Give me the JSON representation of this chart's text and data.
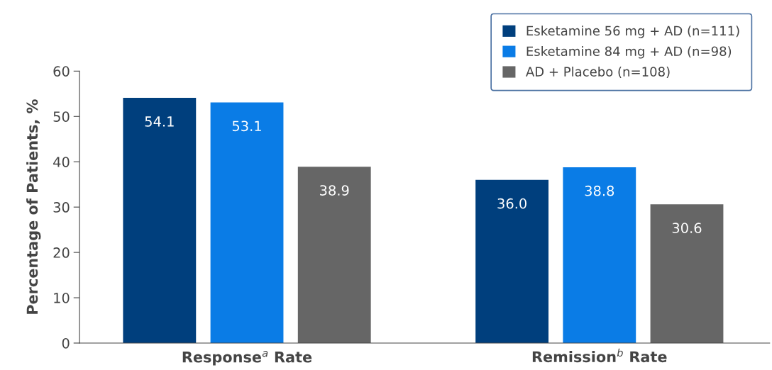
{
  "chart_data": {
    "type": "bar",
    "ylabel": "Percentage of Patients, %",
    "categories": [
      "Response$^{a}$ Rate",
      "Remission$^{b}$ Rate"
    ],
    "series": [
      {
        "name": "Esketamine 56 mg + AD (n=111)",
        "color": "#003f7d",
        "values": [
          54.1,
          36.0
        ],
        "value_labels": [
          "54.1",
          "36.0"
        ]
      },
      {
        "name": "Esketamine 84 mg + AD (n=98)",
        "color": "#0a7ce6",
        "values": [
          53.1,
          38.8
        ],
        "value_labels": [
          "53.1",
          "38.8"
        ]
      },
      {
        "name": "AD + Placebo (n=108)",
        "color": "#666666",
        "values": [
          38.9,
          30.6
        ],
        "value_labels": [
          "38.9",
          "30.6"
        ]
      }
    ],
    "ylim": [
      0,
      60
    ],
    "yticks": [
      0,
      10,
      20,
      30,
      40,
      50,
      60
    ],
    "grid": false,
    "legend": "top right"
  }
}
